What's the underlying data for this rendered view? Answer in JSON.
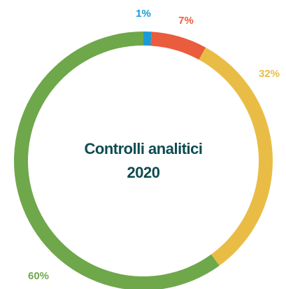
{
  "chart_data": {
    "type": "pie",
    "donut": true,
    "title": "Controlli analitici 2020",
    "categories": [
      null,
      null,
      null,
      null
    ],
    "values": [
      1,
      7,
      32,
      60
    ],
    "value_labels": [
      "1%",
      "7%",
      "32%",
      "60%"
    ],
    "colors": [
      "#1c9ad6",
      "#e95c3e",
      "#e9bd45",
      "#6fa74b"
    ]
  }
}
